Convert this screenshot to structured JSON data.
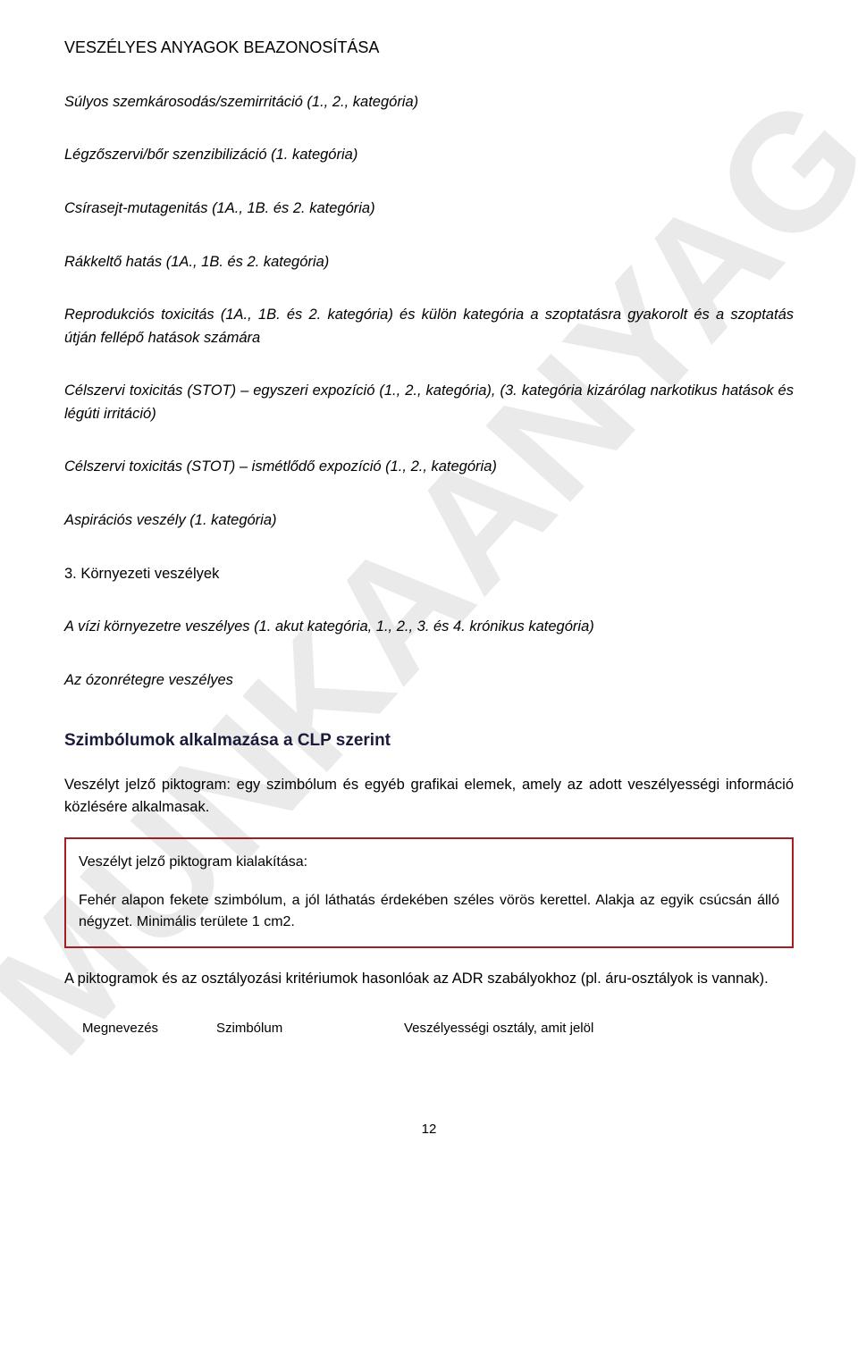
{
  "watermark": "MUNKAANYAG",
  "header": "VESZÉLYES ANYAGOK BEAZONOSÍTÁSA",
  "lines": {
    "l1": "Súlyos szemkárosodás/szemirritáció (1., 2., kategória)",
    "l2": "Légzőszervi/bőr szenzibilizáció (1. kategória)",
    "l3": "Csírasejt-mutagenitás (1A., 1B. és 2. kategória)",
    "l4": "Rákkeltő hatás (1A., 1B. és 2. kategória)",
    "l5": "Reprodukciós toxicitás (1A., 1B. és 2. kategória) és külön kategória a szoptatásra gyakorolt és a szoptatás útján fellépő hatások számára",
    "l6": "Célszervi toxicitás (STOT) – egyszeri expozíció (1., 2., kategória), (3. kategória kizárólag narkotikus hatások és légúti irritáció)",
    "l7": "Célszervi toxicitás (STOT) – ismétlődő expozíció (1., 2., kategória)",
    "l8": "Aspirációs veszély (1. kategória)",
    "section3": "3. Környezeti veszélyek",
    "l9": "A vízi környezetre veszélyes (1. akut kategória, 1., 2., 3. és 4. krónikus kategória)",
    "l10": "Az ózonrétegre veszélyes"
  },
  "h2": "Szimbólumok alkalmazása a CLP szerint",
  "para1": "Veszélyt jelző piktogram: egy szimbólum és egyéb grafikai elemek, amely az adott veszélyességi információ közlésére alkalmasak.",
  "box": {
    "title": "Veszélyt jelző piktogram kialakítása:",
    "body": "Fehér alapon fekete szimbólum, a jól láthatás érdekében széles vörös kerettel. Alakja az egyik csúcsán álló négyzet. Minimális területe 1 cm2.",
    "border_color": "#a02020"
  },
  "para2": "A piktogramok és az osztályozási kritériumok hasonlóak az ADR szabályokhoz (pl. áru-osztályok is vannak).",
  "table_headers": {
    "c1": "Megnevezés",
    "c2": "Szimbólum",
    "c3": "Veszélyességi osztály, amit jelöl"
  },
  "page_number": "12",
  "colors": {
    "text": "#000000",
    "heading": "#1a1a3a",
    "watermark": "#d9d9d9",
    "box_border": "#a02020",
    "background": "#ffffff"
  }
}
